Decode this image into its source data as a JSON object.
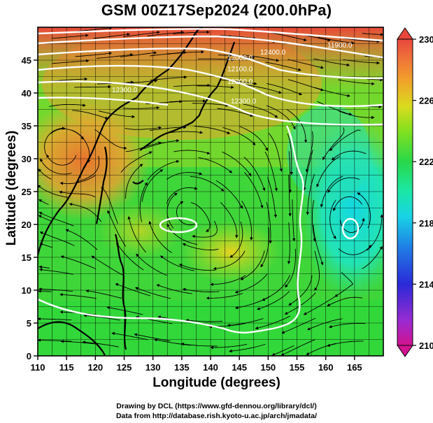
{
  "title": "GSM 00Z17Sep2024 (200.0hPa)",
  "xlabel": "Longitude (degrees)",
  "ylabel": "Latitude (degrees)",
  "credits": [
    "Drawing by DCL (https://www.gfd-dennou.org/library/dcl/)",
    "Data from http://database.rish.kyoto-u.ac.jp/arch/jmadata/"
  ],
  "chart_data": {
    "type": "heatmap",
    "x_range": [
      110,
      170
    ],
    "y_range": [
      0,
      50
    ],
    "x_ticks": [
      "110",
      "115",
      "120",
      "125",
      "130",
      "135",
      "140",
      "145",
      "150",
      "155",
      "160",
      "165"
    ],
    "y_ticks": [
      "0",
      "5",
      "10",
      "15",
      "20",
      "25",
      "30",
      "35",
      "40",
      "45"
    ],
    "colorbar": {
      "min": 210,
      "max": 230,
      "ticks": [
        "230",
        "226",
        "222",
        "218",
        "214",
        "210"
      ],
      "colors": [
        "#d2138f",
        "#9a2bd1",
        "#2a2ad8",
        "#1f7ee6",
        "#19d2e6",
        "#1be7a8",
        "#29d84a",
        "#82e01e",
        "#d9dc1f",
        "#f0a52a",
        "#f0703a",
        "#e8463c"
      ]
    },
    "contour_labels": [
      "11900.0",
      "12000.0",
      "12100.0",
      "12200.0",
      "12300.0",
      "12400.0"
    ],
    "features": [
      "streamlines",
      "coastlines",
      "geopotential height contours"
    ]
  }
}
